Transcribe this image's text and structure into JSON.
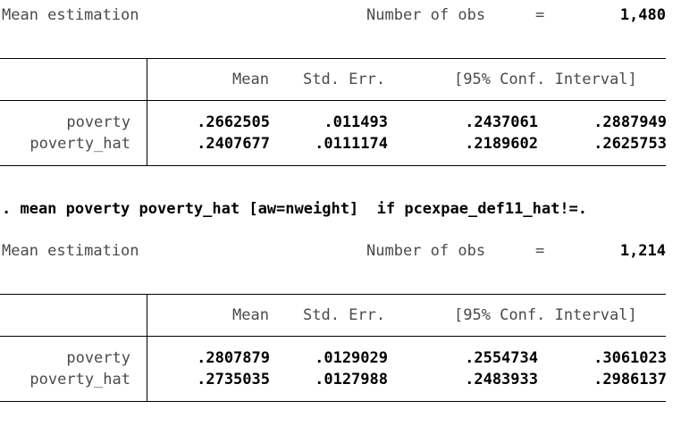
{
  "block1": {
    "heading": "Mean estimation",
    "obs_label": "Number of obs",
    "obs_eq": "=",
    "obs_value": "1,480",
    "columns": {
      "mean": "Mean",
      "stderr": "Std. Err.",
      "ci": "[95% Conf. Interval]"
    },
    "rows": [
      {
        "var": "poverty",
        "mean": ".2662505",
        "se": ".011493",
        "lo": ".2437061",
        "hi": ".2887949"
      },
      {
        "var": "poverty_hat",
        "mean": ".2407677",
        "se": ".0111174",
        "lo": ".2189602",
        "hi": ".2625753"
      }
    ]
  },
  "command": ". mean poverty poverty_hat [aw=nweight]  if pcexpae_def11_hat!=.",
  "block2": {
    "heading": "Mean estimation",
    "obs_label": "Number of obs",
    "obs_eq": "=",
    "obs_value": "1,214",
    "columns": {
      "mean": "Mean",
      "stderr": "Std. Err.",
      "ci": "[95% Conf. Interval]"
    },
    "rows": [
      {
        "var": "poverty",
        "mean": ".2807879",
        "se": ".0129029",
        "lo": ".2554734",
        "hi": ".3061023"
      },
      {
        "var": "poverty_hat",
        "mean": ".2735035",
        "se": ".0127988",
        "lo": ".2483933",
        "hi": ".2986137"
      }
    ]
  }
}
